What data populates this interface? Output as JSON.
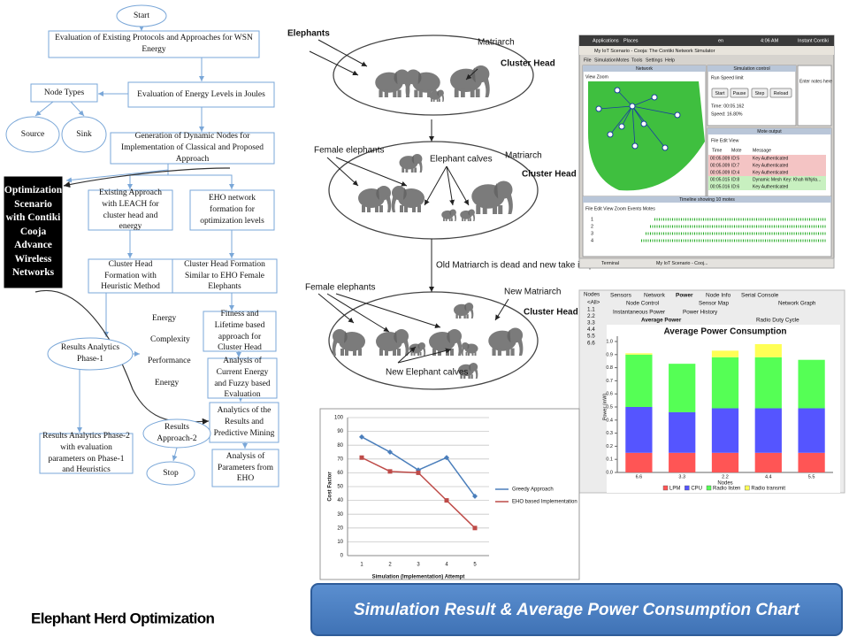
{
  "flowchart": {
    "nodes": [
      "Start",
      "Evaluation of Existing Protocols and Approaches for WSN Energy",
      "Node Types",
      "Source",
      "Sink",
      "Evaluation of Energy Levels in Joules",
      "Generation of Dynamic Nodes for Implementation of Classical and Proposed Approach",
      "Optimization Scenario with Contiki Cooja Advance Wireless Networks",
      "Existing Approach with LEACH for cluster head and energy",
      "EHO network formation for optimization levels",
      "Cluster Head Formation with Heuristic Method",
      "Cluster Head Formation Similar to EHO Female Elephants",
      "Fitness and Lifetime based approach for Cluster Head",
      "Results Analytics Phase-1",
      "Analysis of Current Energy and Fuzzy based Evaluation",
      "Analytics of the Results and Predictive Mining",
      "Results Approach-2",
      "Stop",
      "Analysis of Parameters from EHO",
      "Results Analytics Phase-2 with evaluation parameters on Phase-1 and Heuristics"
    ],
    "labels": [
      "Energy",
      "Complexity",
      "Performance",
      "Energy"
    ]
  },
  "elephant_diagram": {
    "labels": [
      "Elephants",
      "Matriarch",
      "Cluster Head",
      "Female elephants",
      "Elephant calves",
      "Matriarch",
      "Cluster Head",
      "Old Matriarch is dead and new take its position",
      "Female elephants",
      "New Matriarch",
      "Cluster Head",
      "New Elephant calves"
    ]
  },
  "simulator_screenshot": {
    "top_bar": [
      "Applications",
      "Places",
      "en",
      "4:06 AM",
      "Instant Contiki"
    ],
    "window_title": "My IoT Scenario - Cooja: The Contiki Network Simulator",
    "menu": [
      "File",
      "Simulation",
      "Motes",
      "Tools",
      "Settings",
      "Help"
    ],
    "network": {
      "title": "Network",
      "menu": "View  Zoom"
    },
    "sim_control": {
      "title": "Simulation control",
      "menu": "Run  Speed limit",
      "buttons": [
        "Start",
        "Pause",
        "Step",
        "Reload"
      ],
      "time": "Time: 00:05.162",
      "speed": "Speed: 16.80%"
    },
    "notes": "Enter notes here",
    "mote_output": {
      "title": "Mote output",
      "menu": "File  Edit  View",
      "columns": [
        "Time",
        "Mote",
        "Message"
      ],
      "rows": [
        [
          "00:05.009",
          "ID:5",
          "Key Authenticated"
        ],
        [
          "00:05.009",
          "ID:7",
          "Key Authenticated"
        ],
        [
          "00:05.009",
          "ID:4",
          "Key Authenticated"
        ],
        [
          "00:05.015",
          "ID:8",
          "Dynamic Mesh Key: Khah Whjrla..."
        ],
        [
          "00:05.016",
          "ID:6",
          "Key Authenticated"
        ]
      ]
    },
    "timeline": {
      "title": "Timeline showing 10 motes",
      "menu": "File  Edit  View  Zoom  Events  Motes",
      "rows": [
        "1",
        "2",
        "3",
        "4"
      ]
    },
    "taskbar": [
      "Terminal",
      "My IoT Scenario - Cooj..."
    ]
  },
  "power_panel": {
    "tabs": [
      "Sensors",
      "Network",
      "Power",
      "Node Info",
      "Serial Console"
    ],
    "subtabs": [
      "Node Control",
      "Sensor Map",
      "Network Graph"
    ],
    "views": [
      "Instantaneous Power",
      "Power History"
    ],
    "modes": [
      "Average Power",
      "Radio Duty Cycle"
    ],
    "nodes_title": "Nodes",
    "nodes": [
      "<All>",
      "1.1",
      "2.2",
      "3.3",
      "4.4",
      "5.5",
      "6.6"
    ]
  },
  "chart_data": [
    {
      "type": "line",
      "x_label": "Simulation (Implementation) Attempt",
      "y_label": "Cost Factor",
      "categories": [
        "1",
        "2",
        "3",
        "4",
        "5"
      ],
      "ylim": [
        0,
        100
      ],
      "yticks": [
        0,
        10,
        20,
        30,
        40,
        50,
        60,
        70,
        80,
        90,
        100
      ],
      "grid": true,
      "series": [
        {
          "name": "Greedy Approach",
          "color": "#4a7ebb",
          "values": [
            86,
            75,
            62,
            71,
            43
          ]
        },
        {
          "name": "EHO based Implementation",
          "color": "#be4b48",
          "values": [
            71,
            61,
            60,
            40,
            20
          ]
        }
      ]
    },
    {
      "type": "stacked_bar",
      "title": "Average Power Consumption",
      "x_label": "Nodes",
      "y_label": "Power (mW)",
      "categories": [
        "6.6",
        "3.3",
        "2.2",
        "4.4",
        "5.5"
      ],
      "ylim": [
        0,
        1
      ],
      "yticks": [
        {
          "value": 0,
          "label": "0.0"
        },
        0.1,
        0.2,
        0.3,
        0.4,
        0.5,
        0.6,
        0.7,
        0.8,
        0.9,
        {
          "value": 1,
          "label": "1.0"
        }
      ],
      "series": [
        {
          "name": "LPM",
          "color": "#ff5555",
          "values": [
            0.15,
            0.15,
            0.15,
            0.15,
            0.15
          ]
        },
        {
          "name": "CPU",
          "color": "#5555ff",
          "values": [
            0.35,
            0.31,
            0.34,
            0.34,
            0.34
          ]
        },
        {
          "name": "Radio listen",
          "color": "#55ff55",
          "values": [
            0.4,
            0.37,
            0.39,
            0.39,
            0.37
          ]
        },
        {
          "name": "Radio transmit",
          "color": "#ffff55",
          "values": [
            0.01,
            0,
            0.05,
            0.1,
            0
          ]
        }
      ]
    }
  ],
  "footer": {
    "left_title": "Elephant Herd Optimization",
    "banner": "Simulation Result & Average Power Consumption Chart"
  }
}
